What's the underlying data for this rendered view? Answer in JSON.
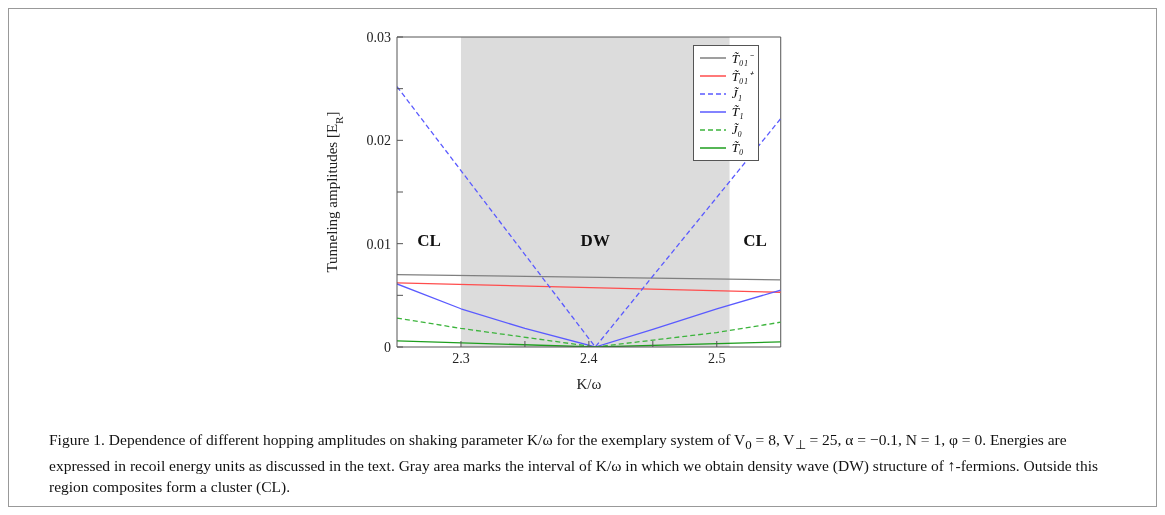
{
  "chart_data": {
    "type": "line",
    "xlabel": "K/ω",
    "ylabel": "Tunneling amplitudes [E$_{R}$]",
    "xlim": [
      2.25,
      2.55
    ],
    "xticks": [
      2.3,
      {
        "value": 2.35,
        "label": null
      },
      2.4,
      {
        "value": 2.45,
        "label": null
      },
      2.5
    ],
    "ylim": [
      0,
      0.03
    ],
    "yticks": [
      0,
      {
        "value": 0.005,
        "label": null
      },
      0.01,
      {
        "value": 0.015,
        "label": null
      },
      0.02,
      {
        "value": 0.025,
        "label": null
      },
      0.03
    ],
    "grid": false,
    "legend": "top right",
    "marker": "none",
    "bands": [
      {
        "axis": "x",
        "from": 2.3,
        "to": 2.51,
        "color": "#dcdcdc"
      }
    ],
    "series": [
      {
        "name": "T̃₀₁⁻",
        "color": "#7f7f7f",
        "x": [
          2.25,
          2.55
        ],
        "values": [
          0.007,
          0.0065
        ]
      },
      {
        "name": "T̃₀₁⁺",
        "color": "#ff4d4d",
        "x": [
          2.25,
          2.55
        ],
        "values": [
          0.0062,
          0.0053
        ]
      },
      {
        "name": "J̃₁",
        "color": "#5a5aff",
        "line_style": "dashed",
        "x": [
          2.25,
          2.405,
          2.55
        ],
        "values": [
          0.0252,
          0,
          0.0221
        ]
      },
      {
        "name": "T̃₁",
        "color": "#5a5aff",
        "x": [
          2.25,
          2.3,
          2.35,
          2.405,
          2.45,
          2.5,
          2.55
        ],
        "values": [
          0.0061,
          0.0037,
          0.0018,
          0,
          0.0017,
          0.0037,
          0.0055
        ]
      },
      {
        "name": "J̃₀",
        "color": "#3cb43c",
        "line_style": "dashed",
        "x": [
          2.25,
          2.3,
          2.405,
          2.5,
          2.55
        ],
        "values": [
          0.0028,
          0.0018,
          0,
          0.0014,
          0.0024
        ]
      },
      {
        "name": "T̃₀",
        "color": "#1e9e1e",
        "x": [
          2.25,
          2.405,
          2.55
        ],
        "values": [
          0.0006,
          0,
          0.0005
        ]
      }
    ],
    "annotations": [
      "CL",
      "DW",
      "CL",
      "Figure 1. Dependence of different hopping amplitudes on shaking parameter K/ω for the exemplary system of V$_{0}$ = 8, V$_{⊥}$ = 25, α = −0.1, N = 1, φ = 0. Energies are expressed in recoil energy units as discussed in the text. Gray area marks the interval of K/ω in which we obtain density wave (DW) structure of ↑-fermions. Outside this region composites form a cluster (CL)."
    ]
  }
}
